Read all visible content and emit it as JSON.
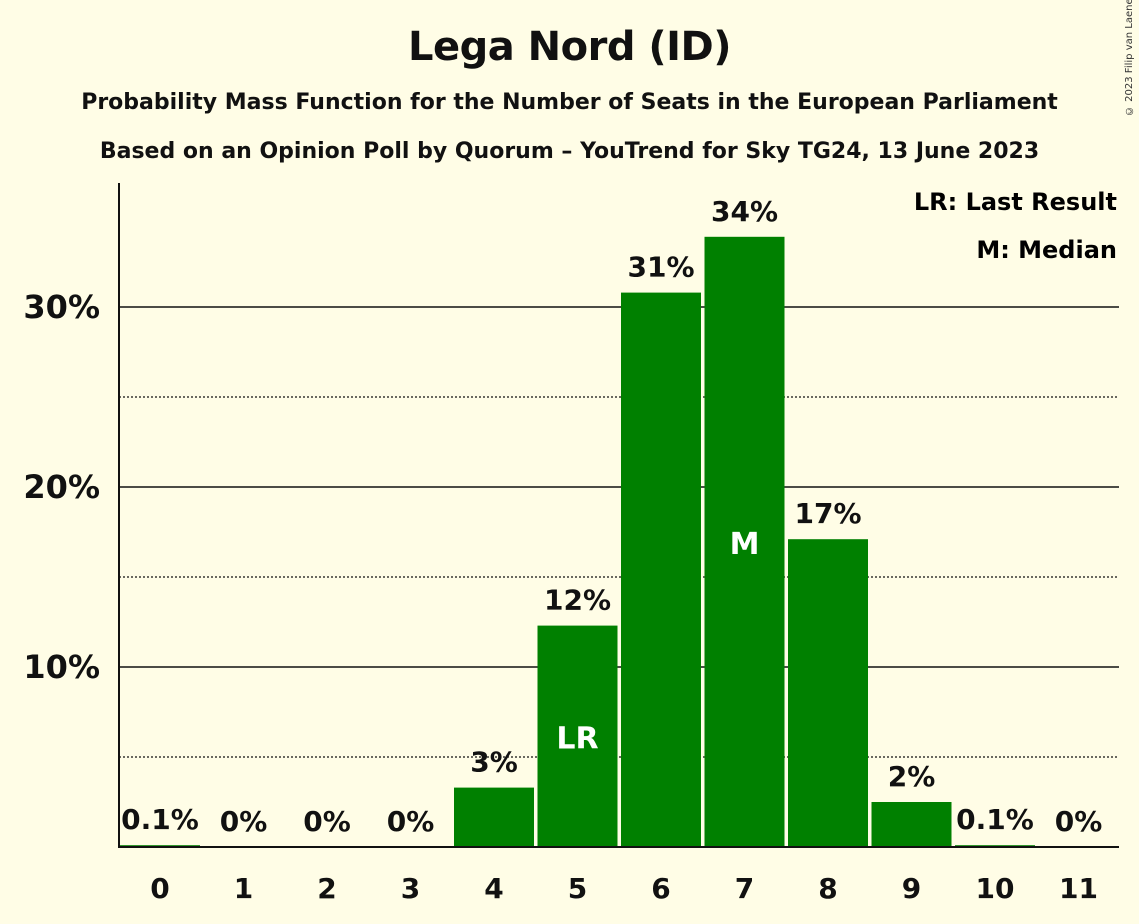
{
  "title": "Lega Nord (ID)",
  "subtitle1": "Probability Mass Function for the Number of Seats in the European Parliament",
  "subtitle2": "Based on an Opinion Poll by Quorum – YouTrend for Sky TG24, 13 June 2023",
  "copyright": "© 2023 Filip van Laenen",
  "legend": [
    "LR: Last Result",
    "M: Median"
  ],
  "colors": {
    "bar": "#008000",
    "background": "#FFFDE6",
    "text": "#111111"
  },
  "chart_data": {
    "type": "bar",
    "categories": [
      "0",
      "1",
      "2",
      "3",
      "4",
      "5",
      "6",
      "7",
      "8",
      "9",
      "10",
      "11"
    ],
    "values": [
      0.1,
      0,
      0,
      0,
      3.3,
      12.3,
      30.8,
      33.9,
      17.1,
      2.5,
      0.1,
      0
    ],
    "labels": [
      "0.1%",
      "0%",
      "0%",
      "0%",
      "3%",
      "12%",
      "31%",
      "34%",
      "17%",
      "2%",
      "0.1%",
      "0%"
    ],
    "bar_markers": {
      "5": "LR",
      "7": "M"
    },
    "yticks": [
      10,
      20,
      30
    ],
    "ytick_labels": [
      "10%",
      "20%",
      "30%"
    ],
    "minor_gridlines": [
      5,
      15,
      25
    ],
    "ylim": [
      0,
      37
    ],
    "legend_position": "top-right"
  }
}
